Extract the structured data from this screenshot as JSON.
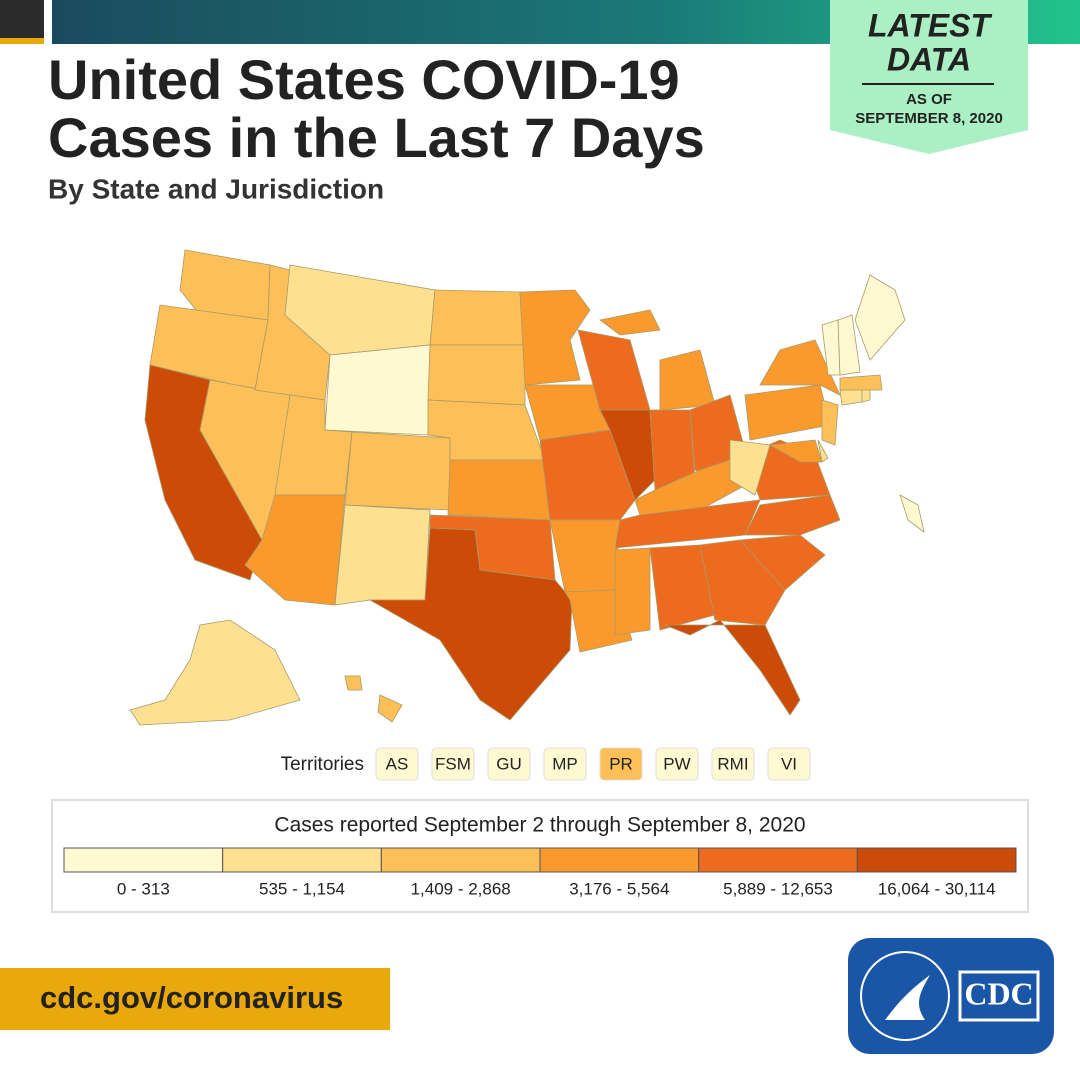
{
  "header": {
    "title_lines": [
      "United States COVID-19",
      "Cases in the Last 7 Days"
    ],
    "subtitle": "By State and Jurisdiction"
  },
  "badge": {
    "headline_lines": [
      "LATEST",
      "DATA"
    ],
    "as_of": "AS OF",
    "date": "SEPTEMBER 8, 2020"
  },
  "territories": {
    "label": "Territories",
    "items": [
      "AS",
      "FSM",
      "GU",
      "MP",
      "PR",
      "PW",
      "RMI",
      "VI"
    ]
  },
  "legend": {
    "title": "Cases reported September 2 through September 8, 2020",
    "classes": [
      {
        "label": "0 - 313",
        "color": "#fff9d2"
      },
      {
        "label": "535 - 1,154",
        "color": "#fee091"
      },
      {
        "label": "1,409 - 2,868",
        "color": "#fdc058"
      },
      {
        "label": "3,176 - 5,564",
        "color": "#fb9a2c"
      },
      {
        "label": "5,889 - 12,653",
        "color": "#ec6b1e"
      },
      {
        "label": "16,064 - 30,114",
        "color": "#cc4b06"
      }
    ]
  },
  "footer": {
    "url": "cdc.gov/coronavirus",
    "logo": "CDC"
  }
}
